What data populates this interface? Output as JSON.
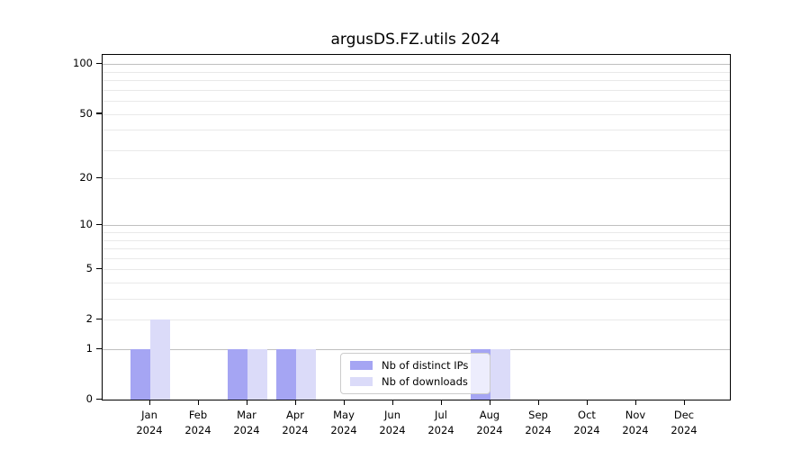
{
  "chart_data": {
    "type": "bar",
    "title": "argusDS.FZ.utils 2024",
    "categories": [
      "Jan",
      "Feb",
      "Mar",
      "Apr",
      "May",
      "Jun",
      "Jul",
      "Aug",
      "Sep",
      "Oct",
      "Nov",
      "Dec"
    ],
    "category_year": "2024",
    "series": [
      {
        "name": "Nb of distinct IPs",
        "color": "#a5a5f3",
        "values": [
          1,
          0,
          1,
          1,
          0,
          0,
          0,
          1,
          0,
          0,
          0,
          0
        ]
      },
      {
        "name": "Nb of downloads",
        "color": "#dbdbf9",
        "values": [
          2,
          0,
          1,
          1,
          0,
          0,
          0,
          1,
          0,
          0,
          0,
          0
        ]
      }
    ],
    "xlabel": "",
    "ylabel": "",
    "y_axis": {
      "scale": "log1p",
      "ylim": [
        0,
        114
      ],
      "tick_labels": [
        "100",
        "50",
        "20",
        "10",
        "5",
        "2",
        "1",
        "0"
      ],
      "tick_values": [
        100,
        50,
        20,
        10,
        5,
        2,
        1,
        0
      ],
      "major_gridlines": [
        100,
        10,
        1
      ],
      "minor_gridlines": [
        90,
        80,
        70,
        60,
        50,
        40,
        30,
        20,
        9,
        8,
        7,
        6,
        5,
        4,
        3,
        2
      ]
    },
    "grid": true,
    "legend": {
      "position": "lower center",
      "entries": [
        "Nb of distinct IPs",
        "Nb of downloads"
      ]
    }
  },
  "colors": {
    "background": "#ffffff",
    "spine": "#000000",
    "grid_major": "#c0c0c0",
    "grid_minor": "#e9e9e9",
    "text": "#000000"
  }
}
